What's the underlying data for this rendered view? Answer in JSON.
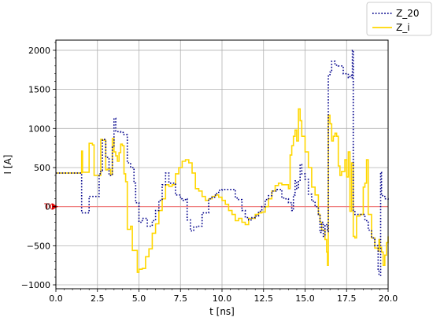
{
  "chart_data": {
    "type": "line",
    "title": "",
    "xlabel": "t [ns]",
    "ylabel": "I [A]",
    "xlim": [
      0,
      20
    ],
    "ylim": [
      -1050,
      2130
    ],
    "grid": true,
    "legend_position": "upper-right-outside",
    "x_ticks": [
      0,
      2.5,
      5,
      7.5,
      10,
      12.5,
      15,
      17.5,
      20
    ],
    "x_tick_labels": [
      "0.0",
      "2.5",
      "5.0",
      "7.5",
      "10.0",
      "12.5",
      "15.0",
      "17.5",
      "20.0"
    ],
    "y_ticks": [
      -1000,
      -500,
      0,
      500,
      1000,
      1500,
      2000
    ],
    "y_tick_labels": [
      "−1000",
      "−500",
      "0",
      "500",
      "1000",
      "1500",
      "2000"
    ],
    "reference_line": {
      "label": "T0",
      "y": 0,
      "color": "#f08080",
      "marker_color": "#e00000"
    },
    "series": [
      {
        "name": "Z_20",
        "color": "#00008b",
        "style": "dotted",
        "points": [
          [
            0,
            430
          ],
          [
            0.6,
            430
          ],
          [
            1.2,
            430
          ],
          [
            1.5,
            430
          ],
          [
            1.55,
            -80
          ],
          [
            1.9,
            -80
          ],
          [
            2.0,
            130
          ],
          [
            2.4,
            130
          ],
          [
            2.6,
            420
          ],
          [
            2.7,
            460
          ],
          [
            2.8,
            860
          ],
          [
            3.0,
            630
          ],
          [
            3.2,
            400
          ],
          [
            3.4,
            760
          ],
          [
            3.5,
            1130
          ],
          [
            3.6,
            960
          ],
          [
            3.9,
            950
          ],
          [
            4.1,
            920
          ],
          [
            4.3,
            560
          ],
          [
            4.5,
            500
          ],
          [
            4.6,
            500
          ],
          [
            4.7,
            300
          ],
          [
            4.8,
            50
          ],
          [
            5.0,
            -200
          ],
          [
            5.2,
            -150
          ],
          [
            5.5,
            -250
          ],
          [
            5.8,
            -180
          ],
          [
            6.0,
            -50
          ],
          [
            6.2,
            80
          ],
          [
            6.4,
            280
          ],
          [
            6.6,
            430
          ],
          [
            6.8,
            300
          ],
          [
            7.0,
            300
          ],
          [
            7.2,
            150
          ],
          [
            7.5,
            100
          ],
          [
            7.6,
            80
          ],
          [
            7.8,
            100
          ],
          [
            7.9,
            -170
          ],
          [
            8.1,
            -310
          ],
          [
            8.3,
            -260
          ],
          [
            8.6,
            -250
          ],
          [
            8.8,
            -80
          ],
          [
            9.0,
            -80
          ],
          [
            9.2,
            100
          ],
          [
            9.4,
            120
          ],
          [
            9.6,
            170
          ],
          [
            9.8,
            210
          ],
          [
            10.0,
            220
          ],
          [
            10.3,
            220
          ],
          [
            10.6,
            220
          ],
          [
            10.8,
            110
          ],
          [
            11.0,
            90
          ],
          [
            11.2,
            -50
          ],
          [
            11.4,
            -140
          ],
          [
            11.6,
            -170
          ],
          [
            11.8,
            -140
          ],
          [
            12.0,
            -120
          ],
          [
            12.2,
            -60
          ],
          [
            12.4,
            0
          ],
          [
            12.6,
            90
          ],
          [
            12.8,
            140
          ],
          [
            13.0,
            200
          ],
          [
            13.3,
            220
          ],
          [
            13.6,
            110
          ],
          [
            13.8,
            100
          ],
          [
            14.0,
            50
          ],
          [
            14.2,
            -50
          ],
          [
            14.3,
            150
          ],
          [
            14.4,
            330
          ],
          [
            14.5,
            230
          ],
          [
            14.6,
            320
          ],
          [
            14.7,
            540
          ],
          [
            14.8,
            420
          ],
          [
            15.0,
            350
          ],
          [
            15.2,
            160
          ],
          [
            15.4,
            70
          ],
          [
            15.6,
            0
          ],
          [
            15.8,
            -100
          ],
          [
            15.9,
            -330
          ],
          [
            16.0,
            -200
          ],
          [
            16.1,
            -380
          ],
          [
            16.2,
            -230
          ],
          [
            16.35,
            -320
          ],
          [
            16.4,
            1670
          ],
          [
            16.5,
            1720
          ],
          [
            16.6,
            1860
          ],
          [
            16.8,
            1810
          ],
          [
            17.0,
            1800
          ],
          [
            17.2,
            1800
          ],
          [
            17.3,
            1700
          ],
          [
            17.4,
            1700
          ],
          [
            17.5,
            1700
          ],
          [
            17.6,
            1650
          ],
          [
            17.7,
            1680
          ],
          [
            17.8,
            1650
          ],
          [
            17.85,
            2000
          ],
          [
            17.9,
            -50
          ],
          [
            18.0,
            -100
          ],
          [
            18.2,
            -100
          ],
          [
            18.4,
            -100
          ],
          [
            18.6,
            -180
          ],
          [
            18.8,
            -300
          ],
          [
            19.0,
            -400
          ],
          [
            19.2,
            -500
          ],
          [
            19.4,
            -800
          ],
          [
            19.45,
            -880
          ],
          [
            19.55,
            440
          ],
          [
            19.6,
            140
          ],
          [
            19.8,
            100
          ],
          [
            20.0,
            70
          ]
        ]
      },
      {
        "name": "Z_i",
        "color": "#ffd700",
        "style": "solid",
        "points": [
          [
            0,
            430
          ],
          [
            1.5,
            430
          ],
          [
            1.55,
            710
          ],
          [
            1.6,
            440
          ],
          [
            1.9,
            440
          ],
          [
            2.0,
            810
          ],
          [
            2.2,
            790
          ],
          [
            2.3,
            400
          ],
          [
            2.6,
            400
          ],
          [
            2.7,
            860
          ],
          [
            2.8,
            850
          ],
          [
            3.0,
            470
          ],
          [
            3.1,
            480
          ],
          [
            3.3,
            410
          ],
          [
            3.4,
            870
          ],
          [
            3.5,
            700
          ],
          [
            3.6,
            650
          ],
          [
            3.7,
            580
          ],
          [
            3.8,
            690
          ],
          [
            3.9,
            800
          ],
          [
            4.0,
            780
          ],
          [
            4.1,
            420
          ],
          [
            4.2,
            320
          ],
          [
            4.3,
            -290
          ],
          [
            4.5,
            -250
          ],
          [
            4.6,
            -560
          ],
          [
            4.8,
            -560
          ],
          [
            4.9,
            -840
          ],
          [
            5.0,
            -800
          ],
          [
            5.2,
            -790
          ],
          [
            5.4,
            -640
          ],
          [
            5.6,
            -540
          ],
          [
            5.8,
            -340
          ],
          [
            6.0,
            -220
          ],
          [
            6.2,
            -50
          ],
          [
            6.4,
            100
          ],
          [
            6.6,
            280
          ],
          [
            6.8,
            260
          ],
          [
            7.0,
            280
          ],
          [
            7.2,
            420
          ],
          [
            7.4,
            500
          ],
          [
            7.6,
            580
          ],
          [
            7.8,
            600
          ],
          [
            8.0,
            560
          ],
          [
            8.2,
            430
          ],
          [
            8.4,
            230
          ],
          [
            8.6,
            200
          ],
          [
            8.8,
            130
          ],
          [
            9.0,
            80
          ],
          [
            9.2,
            100
          ],
          [
            9.4,
            130
          ],
          [
            9.6,
            150
          ],
          [
            9.8,
            120
          ],
          [
            10.0,
            80
          ],
          [
            10.2,
            30
          ],
          [
            10.4,
            -50
          ],
          [
            10.6,
            -100
          ],
          [
            10.8,
            -180
          ],
          [
            11.0,
            -150
          ],
          [
            11.2,
            -200
          ],
          [
            11.4,
            -230
          ],
          [
            11.6,
            -150
          ],
          [
            11.8,
            -150
          ],
          [
            12.0,
            -100
          ],
          [
            12.2,
            -80
          ],
          [
            12.4,
            -70
          ],
          [
            12.6,
            0
          ],
          [
            12.8,
            100
          ],
          [
            13.0,
            200
          ],
          [
            13.2,
            270
          ],
          [
            13.4,
            300
          ],
          [
            13.6,
            280
          ],
          [
            13.8,
            280
          ],
          [
            14.0,
            230
          ],
          [
            14.1,
            660
          ],
          [
            14.2,
            780
          ],
          [
            14.3,
            900
          ],
          [
            14.4,
            980
          ],
          [
            14.5,
            840
          ],
          [
            14.6,
            1250
          ],
          [
            14.7,
            1100
          ],
          [
            14.8,
            900
          ],
          [
            15.0,
            700
          ],
          [
            15.2,
            500
          ],
          [
            15.4,
            250
          ],
          [
            15.6,
            150
          ],
          [
            15.8,
            -100
          ],
          [
            15.9,
            -200
          ],
          [
            16.0,
            -300
          ],
          [
            16.2,
            -420
          ],
          [
            16.3,
            -580
          ],
          [
            16.35,
            -750
          ],
          [
            16.4,
            1170
          ],
          [
            16.5,
            1060
          ],
          [
            16.6,
            840
          ],
          [
            16.7,
            900
          ],
          [
            16.8,
            940
          ],
          [
            16.9,
            900
          ],
          [
            17.0,
            520
          ],
          [
            17.1,
            400
          ],
          [
            17.2,
            450
          ],
          [
            17.4,
            600
          ],
          [
            17.5,
            380
          ],
          [
            17.6,
            700
          ],
          [
            17.7,
            -60
          ],
          [
            17.8,
            560
          ],
          [
            17.9,
            -380
          ],
          [
            18.0,
            -400
          ],
          [
            18.1,
            -120
          ],
          [
            18.3,
            -100
          ],
          [
            18.5,
            250
          ],
          [
            18.6,
            300
          ],
          [
            18.7,
            600
          ],
          [
            18.8,
            -100
          ],
          [
            19.0,
            -400
          ],
          [
            19.2,
            -530
          ],
          [
            19.4,
            -570
          ],
          [
            19.45,
            -420
          ],
          [
            19.5,
            -520
          ],
          [
            19.6,
            -580
          ],
          [
            19.7,
            -750
          ],
          [
            19.8,
            -620
          ],
          [
            19.9,
            -460
          ],
          [
            20.0,
            -380
          ]
        ]
      }
    ]
  }
}
